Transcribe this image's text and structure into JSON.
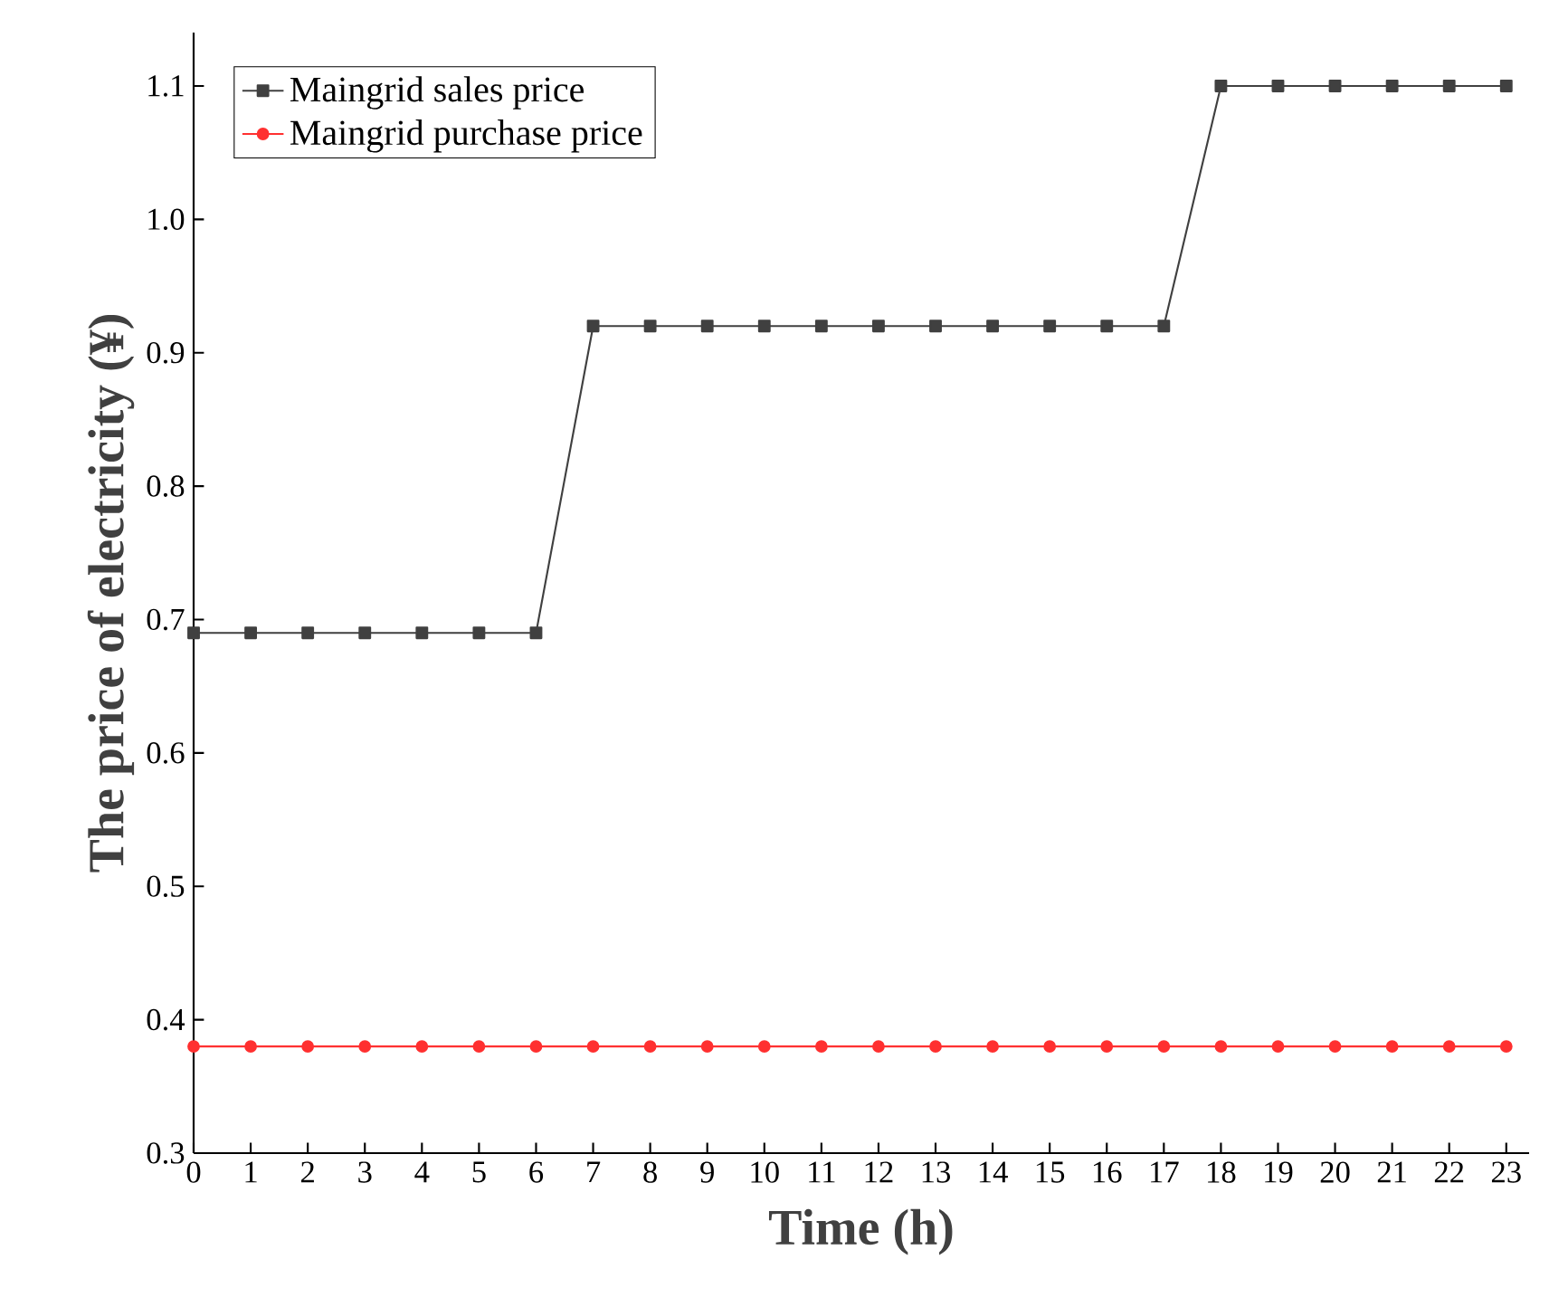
{
  "chart_data": {
    "type": "line",
    "xlabel": "Time (h)",
    "ylabel": "The price of electricity (¥)",
    "x": [
      0,
      1,
      2,
      3,
      4,
      5,
      6,
      7,
      8,
      9,
      10,
      11,
      12,
      13,
      14,
      15,
      16,
      17,
      18,
      19,
      20,
      21,
      22,
      23
    ],
    "series": [
      {
        "name": "Maingrid sales price",
        "color": "#404040",
        "marker": "square",
        "values": [
          0.69,
          0.69,
          0.69,
          0.69,
          0.69,
          0.69,
          0.69,
          0.92,
          0.92,
          0.92,
          0.92,
          0.92,
          0.92,
          0.92,
          0.92,
          0.92,
          0.92,
          0.92,
          1.1,
          1.1,
          1.1,
          1.1,
          1.1,
          1.1
        ]
      },
      {
        "name": "Maingrid purchase price",
        "color": "#ff3030",
        "marker": "circle",
        "values": [
          0.38,
          0.38,
          0.38,
          0.38,
          0.38,
          0.38,
          0.38,
          0.38,
          0.38,
          0.38,
          0.38,
          0.38,
          0.38,
          0.38,
          0.38,
          0.38,
          0.38,
          0.38,
          0.38,
          0.38,
          0.38,
          0.38,
          0.38,
          0.38
        ]
      }
    ],
    "xlim": [
      0,
      23.4
    ],
    "ylim": [
      0.3,
      1.14
    ],
    "xticks": [
      0,
      1,
      2,
      3,
      4,
      5,
      6,
      7,
      8,
      9,
      10,
      11,
      12,
      13,
      14,
      15,
      16,
      17,
      18,
      19,
      20,
      21,
      22,
      23
    ],
    "yticks": [
      0.3,
      0.4,
      0.5,
      0.6,
      0.7,
      0.8,
      0.9,
      {
        "value": 1.0,
        "label": "1.0"
      },
      1.1
    ],
    "grid": false,
    "legend": "top left",
    "line_style": "solid"
  }
}
